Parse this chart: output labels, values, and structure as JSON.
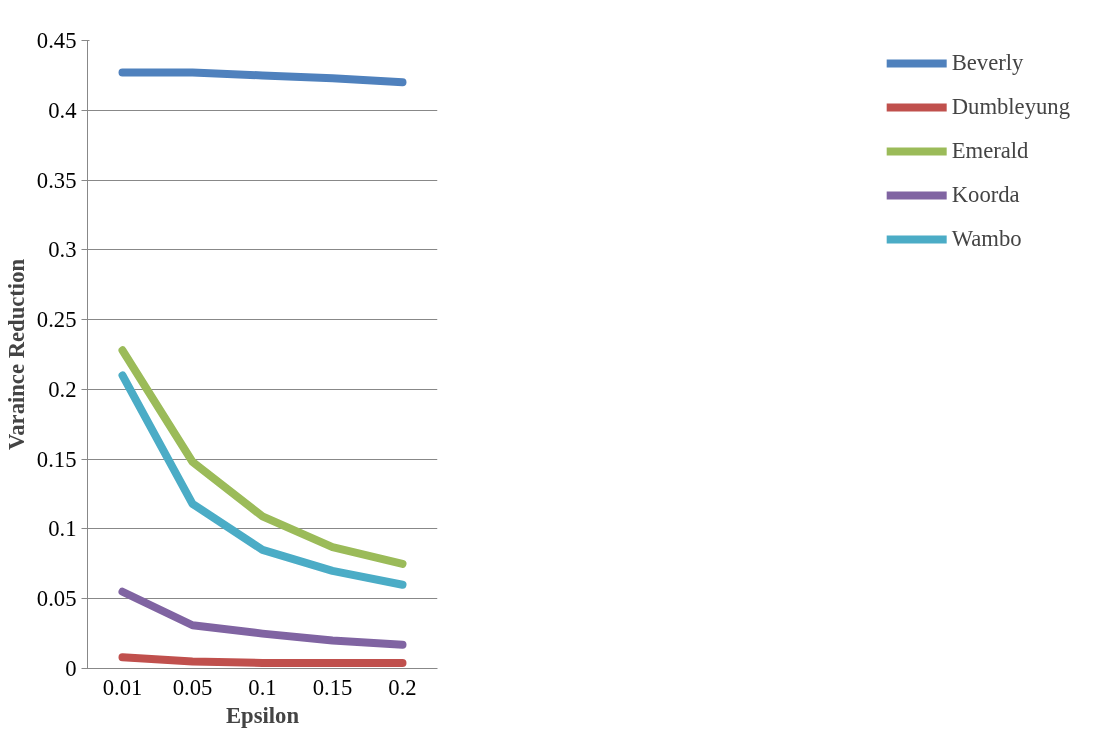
{
  "chart_data": {
    "type": "line",
    "xlabel": "Epsilon",
    "ylabel": "Varaince Reduction",
    "categories": [
      "0.01",
      "0.05",
      "0.1",
      "0.15",
      "0.2"
    ],
    "ylim": [
      0,
      0.45
    ],
    "yticks": [
      0,
      0.05,
      0.1,
      0.15,
      0.2,
      0.25,
      0.3,
      0.35,
      0.4,
      0.45
    ],
    "grid": "y",
    "legend": "right",
    "marker": "none",
    "line_style": "solid",
    "series": [
      {
        "name": "Beverly",
        "color": "#4f81bd",
        "values": [
          0.427,
          0.427,
          0.425,
          0.423,
          0.42
        ]
      },
      {
        "name": "Dumbleyung",
        "color": "#c0504d",
        "values": [
          0.008,
          0.005,
          0.004,
          0.004,
          0.004
        ]
      },
      {
        "name": "Emerald",
        "color": "#9bbb59",
        "values": [
          0.228,
          0.148,
          0.109,
          0.087,
          0.075
        ]
      },
      {
        "name": "Koorda",
        "color": "#8064a2",
        "values": [
          0.055,
          0.031,
          0.025,
          0.02,
          0.017
        ]
      },
      {
        "name": "Wambo",
        "color": "#4bacc6",
        "values": [
          0.21,
          0.118,
          0.085,
          0.07,
          0.06
        ]
      }
    ]
  }
}
